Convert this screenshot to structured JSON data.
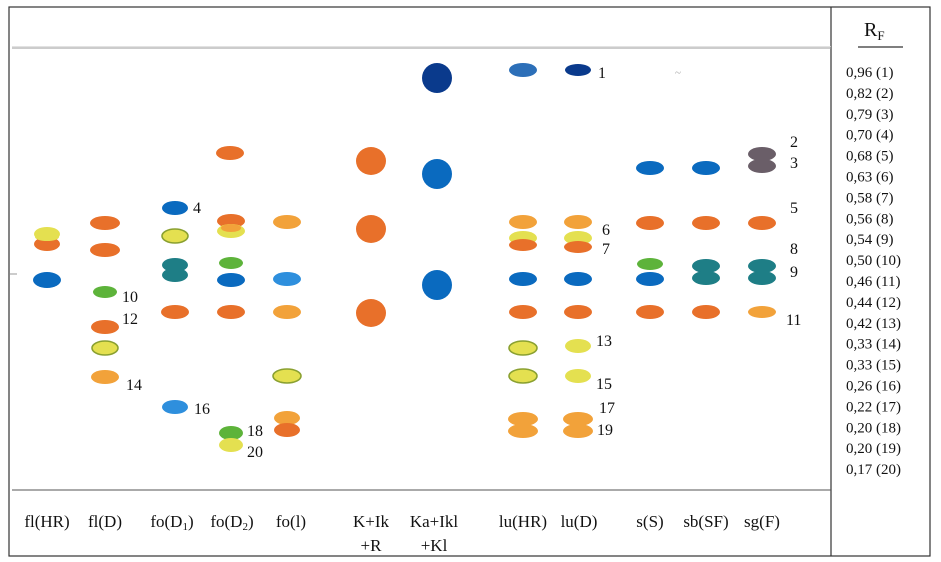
{
  "header": {
    "rf_title": "R",
    "rf_subscript": "F"
  },
  "lanes": [
    {
      "id": "fl_hr",
      "line1": "fl(HR)",
      "line2": ""
    },
    {
      "id": "fl_d",
      "line1": "fl(D)",
      "line2": ""
    },
    {
      "id": "fo_d1",
      "line1": "fo(D",
      "sub": "1",
      "tail": ")",
      "line2": ""
    },
    {
      "id": "fo_d2",
      "line1": "fo(D",
      "sub": "2",
      "tail": ")",
      "line2": ""
    },
    {
      "id": "fo_l",
      "line1": "fo(l)",
      "line2": ""
    },
    {
      "id": "k_ik_r",
      "line1": "K+Ik",
      "line2": "+R"
    },
    {
      "id": "ka_ikl_kl",
      "line1": "Ka+Ikl",
      "line2": "+Kl"
    },
    {
      "id": "lu_hr",
      "line1": "lu(HR)",
      "line2": ""
    },
    {
      "id": "lu_d",
      "line1": "lu(D)",
      "line2": ""
    },
    {
      "id": "s_s",
      "line1": "s(S)",
      "line2": ""
    },
    {
      "id": "sb_sf",
      "line1": "sb(SF)",
      "line2": ""
    },
    {
      "id": "sg_f",
      "line1": "sg(F)",
      "line2": ""
    }
  ],
  "rf_values": [
    {
      "value": "0,96",
      "num": "(1)"
    },
    {
      "value": "0,82",
      "num": "(2)"
    },
    {
      "value": "0,79",
      "num": "(3)"
    },
    {
      "value": "0,70",
      "num": "(4)"
    },
    {
      "value": "0,68",
      "num": "(5)"
    },
    {
      "value": "0,63",
      "num": "(6)"
    },
    {
      "value": "0,58",
      "num": "(7)"
    },
    {
      "value": "0,56",
      "num": "(8)"
    },
    {
      "value": "0,54",
      "num": "(9)"
    },
    {
      "value": "0,50",
      "num": "(10)"
    },
    {
      "value": "0,46",
      "num": "(11)"
    },
    {
      "value": "0,44",
      "num": "(12)"
    },
    {
      "value": "0,42",
      "num": "(13)"
    },
    {
      "value": "0,33",
      "num": "(14)"
    },
    {
      "value": "0,33",
      "num": "(15)"
    },
    {
      "value": "0,26",
      "num": "(16)"
    },
    {
      "value": "0,22",
      "num": "(17)"
    },
    {
      "value": "0,20",
      "num": "(18)"
    },
    {
      "value": "0,20",
      "num": "(19)"
    },
    {
      "value": "0,17",
      "num": "(20)"
    }
  ],
  "spot_labels": [
    "1",
    "2",
    "3",
    "4",
    "5",
    "6",
    "7",
    "8",
    "9",
    "10",
    "11",
    "12",
    "13",
    "14",
    "15",
    "16",
    "17",
    "18",
    "19",
    "20"
  ],
  "colors": {
    "orange": "#E8702A",
    "light_orange": "#F2A23A",
    "yellow": "#E4E050",
    "yellow_ring": "#8AA030",
    "green": "#5DB33A",
    "teal": "#1E7E86",
    "blue": "#0A6ABF",
    "light_blue": "#2E8FDD",
    "navy": "#0A3A8C",
    "mid_blue": "#2C6FB8",
    "gray_purple": "#6A5E68"
  }
}
